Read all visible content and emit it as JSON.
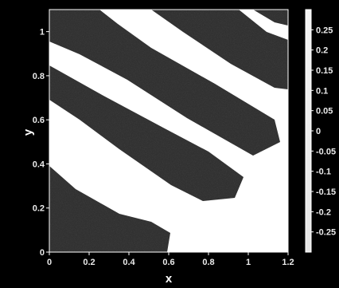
{
  "chart_data": {
    "type": "heatmap",
    "title": "",
    "xlabel": "x",
    "ylabel": "y",
    "xlim": [
      0,
      1.2
    ],
    "ylim": [
      0,
      1.1
    ],
    "x_ticks": [
      "0",
      "0.2",
      "0.4",
      "0.6",
      "0.8",
      "1",
      "1.2"
    ],
    "y_ticks": [
      "0",
      "0.2",
      "0.4",
      "0.6",
      "0.8",
      "1"
    ],
    "colorbar": {
      "range": [
        -0.3,
        0.3
      ],
      "ticks": [
        "0.25",
        "0.2",
        "0.15",
        "0.1",
        "0.05",
        "0",
        "-0.05",
        "-0.1",
        "-0.15",
        "-0.2",
        "-0.25"
      ]
    },
    "pattern": "diagonal dark stripes on white background",
    "grid": false,
    "colors": {
      "dark": "#3a3a3a",
      "light": "#ffffff",
      "background": "#000000"
    }
  }
}
